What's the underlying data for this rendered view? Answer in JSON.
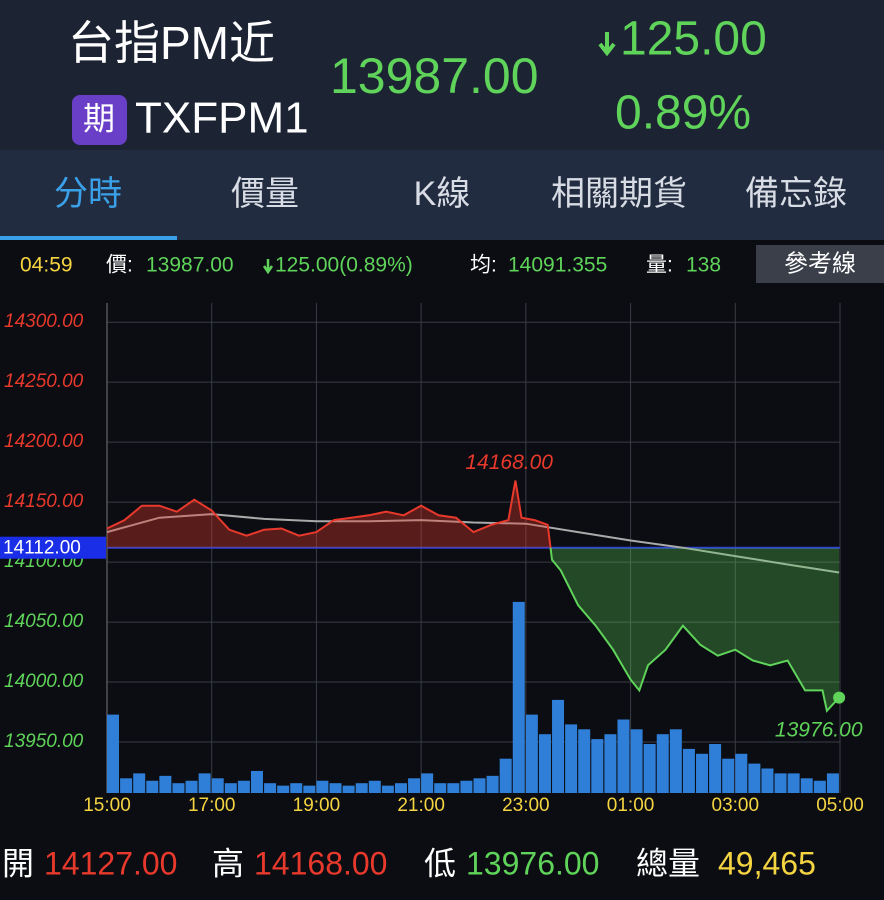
{
  "header": {
    "title": "台指PM近",
    "badge": "期",
    "code": "TXFPM1",
    "price": "13987.00",
    "change": "125.00",
    "change_pct": "0.89%"
  },
  "tabs": [
    "分時",
    "價量",
    "K線",
    "相關期貨",
    "備忘錄"
  ],
  "info": {
    "time": "04:59",
    "price_label": "價:",
    "price": "13987.00",
    "change": "125.00(0.89%)",
    "avg_label": "均:",
    "avg": "14091.355",
    "vol_label": "量:",
    "vol": "138",
    "button": "參考線"
  },
  "chart_data": {
    "type": "line",
    "ylim": [
      13907.5,
      14316
    ],
    "yticks": [
      {
        "value": 13950,
        "label": "13950.00"
      },
      {
        "value": 14000,
        "label": "14000.00"
      },
      {
        "value": 14050,
        "label": "14050.00"
      },
      {
        "value": 14100,
        "label": "14100.00"
      },
      {
        "value": 14150,
        "label": "14150.00"
      },
      {
        "value": 14200,
        "label": "14200.00"
      },
      {
        "value": 14250,
        "label": "14250.00"
      },
      {
        "value": 14300,
        "label": "14300.00"
      }
    ],
    "xticks": [
      "15:00",
      "17:00",
      "19:00",
      "21:00",
      "23:00",
      "01:00",
      "03:00",
      "05:00"
    ],
    "y2lim": [
      0,
      1000
    ],
    "grid": true,
    "reference": {
      "value": 14112,
      "label": "14112.00"
    },
    "high_label": "14168.00",
    "low_label": "13976.00",
    "series": [
      {
        "color": "#e8392c",
        "below_color": "#5fd35a",
        "x": [
          "15:00",
          "15:20",
          "15:40",
          "16:00",
          "16:20",
          "16:40",
          "17:00",
          "17:20",
          "17:40",
          "18:00",
          "18:20",
          "18:40",
          "19:00",
          "19:20",
          "19:40",
          "20:00",
          "20:20",
          "20:40",
          "21:00",
          "21:20",
          "21:40",
          "22:00",
          "22:20",
          "22:40",
          "22:48",
          "22:55",
          "23:10",
          "23:25",
          "23:30",
          "23:40",
          "00:00",
          "00:20",
          "00:40",
          "01:00",
          "01:10",
          "01:20",
          "01:40",
          "02:00",
          "02:20",
          "02:40",
          "03:00",
          "03:20",
          "03:40",
          "04:00",
          "04:20",
          "04:40",
          "04:45",
          "04:59"
        ],
        "values": [
          14128,
          14135,
          14147,
          14147,
          14142,
          14152,
          14143,
          14127,
          14122,
          14127,
          14128,
          14122,
          14125,
          14135,
          14137,
          14139,
          14142,
          14139,
          14147,
          14139,
          14137,
          14125,
          14131,
          14135,
          14168,
          14137,
          14135,
          14131,
          14102,
          14093,
          14064,
          14047,
          14027,
          14002,
          13993,
          14014,
          14027,
          14047,
          14031,
          14022,
          14027,
          14018,
          14014,
          14018,
          13993,
          13993,
          13976,
          13987
        ]
      },
      {
        "color": "#aaaaaa",
        "x": [
          "15:00",
          "16:00",
          "17:00",
          "18:00",
          "19:00",
          "20:00",
          "21:00",
          "22:00",
          "23:00",
          "00:00",
          "01:00",
          "02:00",
          "03:00",
          "04:00",
          "04:59"
        ],
        "values": [
          14125,
          14137,
          14140,
          14136,
          14134,
          14134,
          14135,
          14133,
          14132,
          14125,
          14118,
          14112,
          14105,
          14098,
          14091.355
        ]
      },
      {
        "color": "#2f7fd8",
        "axis": "y2",
        "x": [
          "15:00",
          "15:15",
          "15:30",
          "15:45",
          "16:00",
          "16:15",
          "16:30",
          "16:45",
          "17:00",
          "17:15",
          "17:30",
          "17:45",
          "18:00",
          "18:15",
          "18:30",
          "18:45",
          "19:00",
          "19:15",
          "19:30",
          "19:45",
          "20:00",
          "20:15",
          "20:30",
          "20:45",
          "21:00",
          "21:15",
          "21:30",
          "21:45",
          "22:00",
          "22:15",
          "22:30",
          "22:45",
          "23:00",
          "23:15",
          "23:30",
          "23:45",
          "00:00",
          "00:15",
          "00:30",
          "00:45",
          "01:00",
          "01:15",
          "01:30",
          "01:45",
          "02:00",
          "02:15",
          "02:30",
          "02:45",
          "03:00",
          "03:15",
          "03:30",
          "03:45",
          "04:00",
          "04:15",
          "04:30",
          "04:45"
        ],
        "values": [
          160,
          30,
          40,
          25,
          35,
          20,
          25,
          40,
          30,
          20,
          25,
          45,
          20,
          15,
          20,
          15,
          25,
          20,
          15,
          20,
          25,
          15,
          20,
          30,
          40,
          20,
          20,
          25,
          30,
          35,
          70,
          390,
          160,
          120,
          190,
          140,
          130,
          110,
          120,
          150,
          130,
          100,
          120,
          130,
          90,
          80,
          100,
          70,
          80,
          60,
          50,
          40,
          40,
          30,
          25,
          40
        ]
      }
    ]
  },
  "footer": {
    "open_label": "開",
    "open": "14127.00",
    "high_label": "高",
    "high": "14168.00",
    "low_label": "低",
    "low": "13976.00",
    "vol_label": "總量",
    "vol": "49,465"
  }
}
